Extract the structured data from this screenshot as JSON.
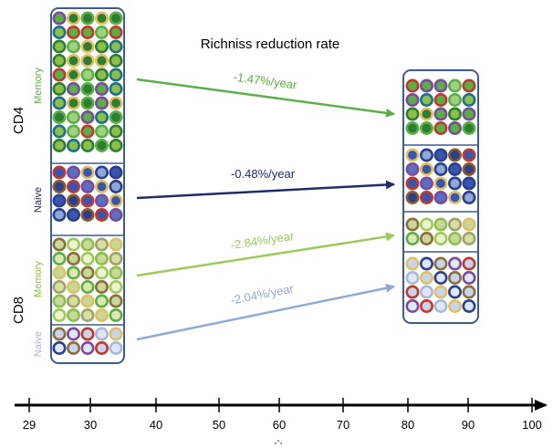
{
  "title": "Richniss reduction rate",
  "groups": {
    "cd4": "CD4",
    "cd8": "CD8"
  },
  "subsets": {
    "cd4_memory": "Memory",
    "cd4_naive": "Naive",
    "cd8_memory": "Memory",
    "cd8_naive": "Naive"
  },
  "rates": [
    {
      "label": "-1.47%/year",
      "color": "#5aaf47"
    },
    {
      "label": "-0.48%/year",
      "color": "#1f2b6b"
    },
    {
      "label": "-2.84%/year",
      "color": "#9bc95a"
    },
    {
      "label": "-2.04%/year",
      "color": "#8fa8d6"
    }
  ],
  "subset_colors": {
    "cd4_memory": "#5aaf47",
    "cd4_naive": "#1f2b6b",
    "cd8_memory": "#8cc04a",
    "cd8_naive": "#a7b8da"
  },
  "axis": {
    "ticks": [
      "29",
      "30",
      "40",
      "50",
      "60",
      "70",
      "80",
      "90",
      "100"
    ],
    "xlabel": ",-,"
  }
}
